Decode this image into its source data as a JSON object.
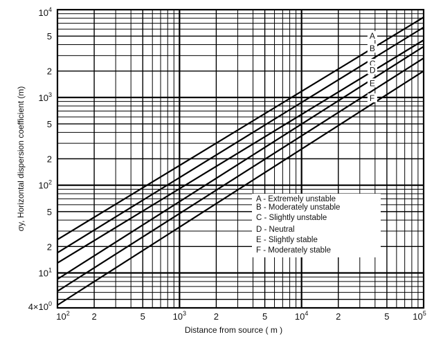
{
  "chart_data": {
    "type": "line",
    "title": "",
    "xlabel": "Distance from source ( m )",
    "ylabel": "σy, Horizontal dispersion coefficient (m)",
    "x_scale": "log",
    "y_scale": "log",
    "xlim": [
      100,
      100000
    ],
    "ylim": [
      4,
      10000
    ],
    "grid": true,
    "legend_position": "lower-right",
    "x_ticks": [
      {
        "value": 100,
        "mantissa": "10",
        "exp": "2"
      },
      {
        "value": 200,
        "mantissa": "2",
        "exp": ""
      },
      {
        "value": 500,
        "mantissa": "5",
        "exp": ""
      },
      {
        "value": 1000,
        "mantissa": "10",
        "exp": "3"
      },
      {
        "value": 2000,
        "mantissa": "2",
        "exp": ""
      },
      {
        "value": 5000,
        "mantissa": "5",
        "exp": ""
      },
      {
        "value": 10000,
        "mantissa": "10",
        "exp": "4"
      },
      {
        "value": 20000,
        "mantissa": "2",
        "exp": ""
      },
      {
        "value": 50000,
        "mantissa": "5",
        "exp": ""
      },
      {
        "value": 100000,
        "mantissa": "10",
        "exp": "5"
      }
    ],
    "y_ticks": [
      {
        "value": 4,
        "mantissa": "4×10",
        "exp": "0"
      },
      {
        "value": 10,
        "mantissa": "10",
        "exp": "1"
      },
      {
        "value": 20,
        "mantissa": "2",
        "exp": ""
      },
      {
        "value": 50,
        "mantissa": "5",
        "exp": ""
      },
      {
        "value": 100,
        "mantissa": "10",
        "exp": "2"
      },
      {
        "value": 200,
        "mantissa": "2",
        "exp": ""
      },
      {
        "value": 500,
        "mantissa": "5",
        "exp": ""
      },
      {
        "value": 1000,
        "mantissa": "10",
        "exp": "3"
      },
      {
        "value": 2000,
        "mantissa": "2",
        "exp": ""
      },
      {
        "value": 5000,
        "mantissa": "5",
        "exp": ""
      },
      {
        "value": 10000,
        "mantissa": "10",
        "exp": "4"
      }
    ],
    "series": [
      {
        "name": "A",
        "x": [
          100,
          100000
        ],
        "y": [
          24,
          8200
        ]
      },
      {
        "name": "B",
        "x": [
          100,
          100000
        ],
        "y": [
          17,
          6300
        ]
      },
      {
        "name": "C",
        "x": [
          100,
          100000
        ],
        "y": [
          13,
          4500
        ]
      },
      {
        "name": "D",
        "x": [
          100,
          100000
        ],
        "y": [
          8.5,
          3800
        ]
      },
      {
        "name": "E",
        "x": [
          100,
          100000
        ],
        "y": [
          6.2,
          2800
        ]
      },
      {
        "name": "F",
        "x": [
          100,
          100000
        ],
        "y": [
          4.3,
          2000
        ]
      }
    ],
    "legend": [
      "A - Extremely unstable",
      "B - Moderately unstable",
      "C - Slightly unstable",
      "D - Neutral",
      "E - Slightly stable",
      "F - Moderately stable"
    ]
  }
}
